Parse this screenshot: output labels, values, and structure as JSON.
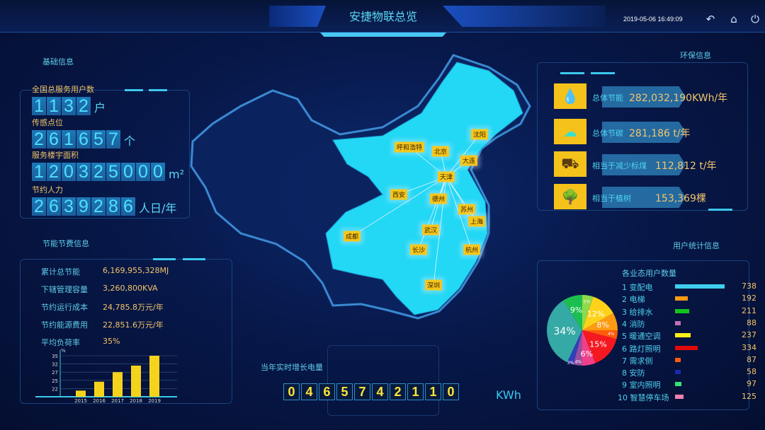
{
  "header": {
    "title": "安捷物联总览",
    "datetime": "2019-05-06 16:49:09",
    "icons": [
      "back-icon",
      "home-icon",
      "power-icon"
    ]
  },
  "basic": {
    "title": "基础信息",
    "items": [
      {
        "label": "全国总服务用户数",
        "value": "1132",
        "unit": "户"
      },
      {
        "label": "传感点位",
        "value": "261657",
        "unit": "个"
      },
      {
        "label": "服务楼宇面积",
        "value": "120325000",
        "unit": "m²"
      },
      {
        "label": "节约人力",
        "value": "2639286",
        "unit": "人日/年"
      }
    ]
  },
  "energy": {
    "title": "节能节费信息",
    "rows": [
      {
        "k": "累计总节能",
        "v": "6,169,955,328MJ"
      },
      {
        "k": "下辖管理容量",
        "v": "3,260,800KVA"
      },
      {
        "k": "节约运行成本",
        "v": "24,785.8万元/年"
      },
      {
        "k": "节约能源费用",
        "v": "22,851.6万元/年"
      },
      {
        "k": "平均负荷率",
        "v": "35%"
      }
    ]
  },
  "chart_data": [
    {
      "type": "bar",
      "ylabel": "%",
      "yticks": [
        22,
        25,
        27,
        32,
        35
      ],
      "categories": [
        "2015",
        "2016",
        "2017",
        "2018",
        "2019"
      ],
      "values": [
        21.5,
        24.5,
        27,
        31,
        35
      ],
      "color": "#f5d31c",
      "grid": true
    },
    {
      "type": "pie",
      "categories": [
        "1 变配电",
        "2 电梯",
        "3 给排水",
        "4 消防",
        "5 暖通空调",
        "6 路灯照明",
        "7 需求侧",
        "8 安防",
        "9 室内照明",
        "10 智慧停车场"
      ],
      "slice_labels": [
        "34%",
        "9%",
        "5%",
        "12%",
        "8%",
        "4%",
        "15%",
        "6%",
        "4%",
        "3%"
      ],
      "slice_values": [
        34,
        9,
        5,
        12,
        8,
        4,
        15,
        6,
        4,
        3
      ],
      "slice_colors": [
        "#35a9a5",
        "#1cbf4f",
        "#8fd94a",
        "#ffd21a",
        "#ff9a12",
        "#ff5a0a",
        "#f51820",
        "#f0408a",
        "#9a4da0",
        "#3040b8"
      ]
    }
  ],
  "env": {
    "title": "环保信息",
    "items": [
      {
        "icon": "energy-drop-icon",
        "k": "总体节能",
        "v": "282,032,190KWh/年"
      },
      {
        "icon": "carbon-cloud-icon",
        "k": "总体节碳",
        "v": "281,186 t/年"
      },
      {
        "icon": "coal-cart-icon",
        "k": "相当于减少标煤",
        "v": "112,812 t/年"
      },
      {
        "icon": "tree-icon",
        "k": "相当于植树",
        "v": "153,369棵"
      }
    ]
  },
  "users": {
    "title": "用户统计信息",
    "subtitle": "各业态用户数量",
    "items": [
      {
        "name": "1 变配电",
        "value": 738,
        "color": "#3ecfee"
      },
      {
        "name": "2 电梯",
        "value": 192,
        "color": "#ff9a12"
      },
      {
        "name": "3 给排水",
        "value": 211,
        "color": "#12c41e"
      },
      {
        "name": "4 消防",
        "value": 88,
        "color": "#c070b0"
      },
      {
        "name": "5 暖通空调",
        "value": 237,
        "color": "#fff21a"
      },
      {
        "name": "6 路灯照明",
        "value": 334,
        "color": "#e00a0a"
      },
      {
        "name": "7 需求侧",
        "value": 87,
        "color": "#ff5a10"
      },
      {
        "name": "8 安防",
        "value": 58,
        "color": "#1a2ab0"
      },
      {
        "name": "9 室内照明",
        "value": 97,
        "color": "#36e07a"
      },
      {
        "name": "10 智慧停车场",
        "value": 125,
        "color": "#f080b0"
      }
    ]
  },
  "growth": {
    "label": "当年实时增长电量",
    "digits": "0465742110",
    "unit": "KWh"
  },
  "map": {
    "hub": "天津",
    "cities": [
      "呼和浩特",
      "北京",
      "沈阳",
      "大连",
      "天津",
      "西安",
      "德州",
      "苏州",
      "上海",
      "成都",
      "武汉",
      "长沙",
      "杭州",
      "深圳"
    ]
  }
}
